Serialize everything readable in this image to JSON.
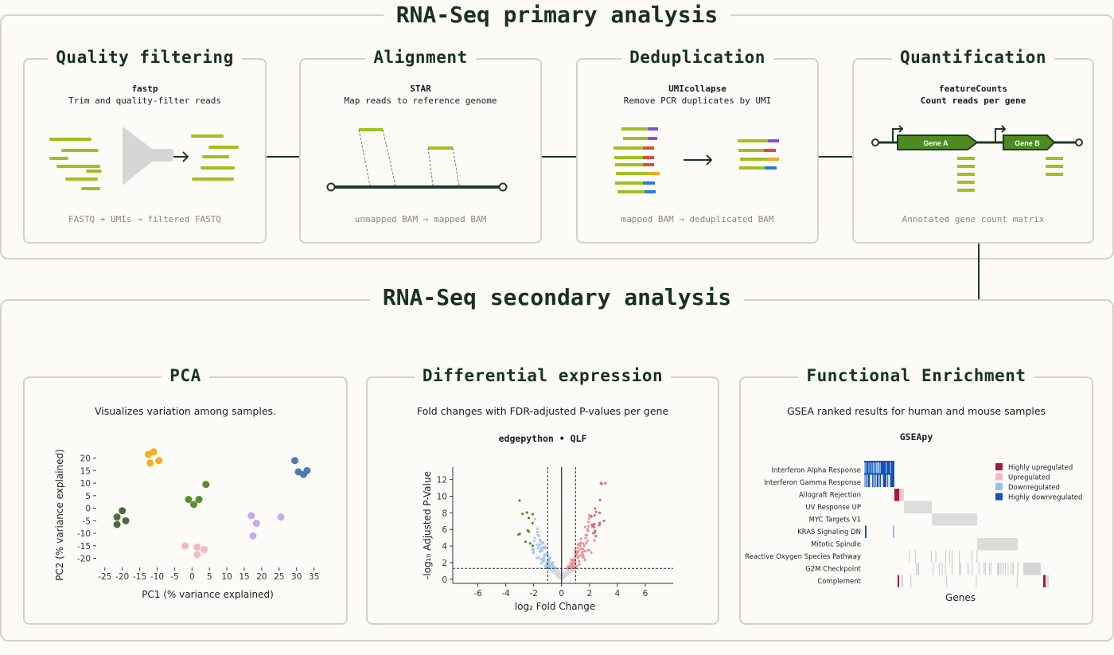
{
  "primary": {
    "title": "RNA-Seq primary analysis",
    "steps": [
      {
        "title": "Quality filtering",
        "tool": "fastp",
        "desc": "Trim and quality-filter reads",
        "io": "FASTQ + UMIs → filtered FASTQ"
      },
      {
        "title": "Alignment",
        "tool": "STAR",
        "desc": "Map reads to reference genome",
        "io": "unmapped BAM → mapped BAM"
      },
      {
        "title": "Deduplication",
        "tool": "UMIcollapse",
        "desc": "Remove PCR duplicates by UMI",
        "io": "mapped BAM → deduplicated BAM"
      },
      {
        "title": "Quantification",
        "tool": "featureCounts",
        "desc": "Count reads per gene",
        "io": "Annotated gene count matrix"
      }
    ],
    "genes": [
      "Gene A",
      "Gene B"
    ]
  },
  "secondary": {
    "title": "RNA-Seq secondary analysis",
    "pca": {
      "title": "PCA",
      "desc": "Visualizes variation among samples."
    },
    "de": {
      "title": "Differential expression",
      "desc": "Fold changes with FDR-adjusted P-values per gene",
      "tool": "edgepython • QLF"
    },
    "fe": {
      "title": "Functional Enrichment",
      "desc": "GSEA  ranked results for human and mouse samples",
      "tool": "GSEApy"
    }
  },
  "colors": {
    "accent": "#8cb924",
    "dark_green": "#1f3a22",
    "purple": "#8e4ad8",
    "red": "#e04a3a",
    "orange": "#f2a91f",
    "blue": "#2e7bd6",
    "pca_groups": [
      "#4a6b3c",
      "#f2b01e",
      "#5c8f2a",
      "#f4b8c8",
      "#c9a8ef",
      "#4f7ab8"
    ],
    "volcano_up": "#e8949a",
    "volcano_down": "#a9c9ee",
    "volcano_sig": "#5c8f2a",
    "volcano_ns": "#d8d8d8"
  },
  "chart_data": [
    {
      "type": "scatter",
      "xlabel": "PC1 (% variance explained)",
      "ylabel": "PC2 (% variance explained)",
      "xlim": [
        -27,
        36
      ],
      "ylim": [
        -23,
        24
      ],
      "xticks": [
        -25,
        -20,
        -15,
        -10,
        -5,
        0,
        5,
        10,
        15,
        20,
        25,
        30,
        35
      ],
      "yticks": [
        20,
        15,
        10,
        5,
        0,
        -5,
        -10,
        -15,
        -20
      ],
      "series": [
        {
          "points": [
            [
              -20,
              -1
            ],
            [
              -21.5,
              -3.5
            ],
            [
              -19,
              -5
            ],
            [
              -21.5,
              -6.5
            ]
          ]
        },
        {
          "points": [
            [
              -12.5,
              21.5
            ],
            [
              -11,
              22.5
            ],
            [
              -9.5,
              19
            ],
            [
              -12,
              18
            ]
          ]
        },
        {
          "points": [
            [
              -1,
              3.5
            ],
            [
              4,
              9.5
            ],
            [
              2,
              3.5
            ],
            [
              0.5,
              1.5
            ]
          ]
        },
        {
          "points": [
            [
              -2,
              -15
            ],
            [
              1.5,
              -15.5
            ],
            [
              3.5,
              -16.5
            ],
            [
              1.5,
              -18.5
            ]
          ]
        },
        {
          "points": [
            [
              17,
              -3
            ],
            [
              18.5,
              -6
            ],
            [
              25.5,
              -3.5
            ],
            [
              17.5,
              -11
            ]
          ]
        },
        {
          "points": [
            [
              29.5,
              19
            ],
            [
              30.5,
              14.5
            ],
            [
              32,
              13.5
            ],
            [
              33,
              15
            ]
          ]
        }
      ]
    },
    {
      "type": "scatter",
      "xlabel": "log₂ Fold Change",
      "ylabel": "-log₁₀ Adjusted P-Value",
      "xlim": [
        -7.8,
        8
      ],
      "ylim": [
        -0.5,
        13.5
      ],
      "xticks": [
        -6,
        -4,
        -2,
        0,
        2,
        4,
        6
      ],
      "yticks": [
        0,
        2,
        4,
        6,
        8,
        10,
        12
      ],
      "fc_threshold": 1,
      "p_threshold": 1.3
    },
    {
      "type": "heatmap",
      "xlabel": "Genes",
      "categories": [
        "Interferon Alpha Response",
        "Interferon Gamma Response",
        "Allograft Rejection",
        "UV Response UP",
        "MYC Targets V1",
        "KRAS Signaling DN",
        "Mitotic Spindle",
        "Reactive Oxygen Species Pathway",
        "G2M Checkpoint",
        "Complement"
      ],
      "legend": [
        {
          "label": "Highly upregulated",
          "color": "#a31c3a"
        },
        {
          "label": "Upregulated",
          "color": "#f4b8c3"
        },
        {
          "label": "Downregulated",
          "color": "#93c3f2"
        },
        {
          "label": "Highly downregulated",
          "color": "#1452b3"
        }
      ]
    }
  ]
}
